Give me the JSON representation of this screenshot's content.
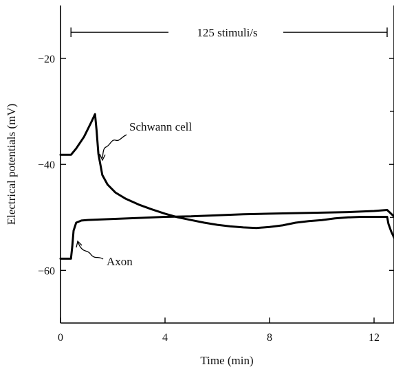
{
  "chart_data": {
    "type": "line",
    "title": "",
    "xlabel": "Time (min)",
    "ylabel": "Electrical potentials (mV)",
    "xlim": [
      0,
      12.8
    ],
    "ylim": [
      -70,
      -10
    ],
    "x_ticks": [
      "0",
      "4",
      "8",
      "12"
    ],
    "y_ticks": [
      "-20",
      "-40",
      "-60"
    ],
    "grid": false,
    "stimulus_bar": {
      "label": "125 stimuli/s",
      "start": 0.4,
      "end": 12.5
    },
    "series": [
      {
        "name": "Schwann cell",
        "color": "#000000",
        "x": [
          0,
          0.4,
          0.6,
          0.9,
          1.2,
          1.32,
          1.38,
          1.45,
          1.6,
          1.8,
          2.1,
          2.5,
          3.0,
          3.5,
          4.0,
          4.5,
          5.0,
          5.5,
          6.0,
          6.5,
          7.0,
          7.5,
          8.0,
          8.5,
          9.0,
          9.5,
          10.0,
          10.5,
          11.0,
          11.5,
          12.0,
          12.5,
          12.55,
          12.65,
          12.8
        ],
        "values": [
          -38.2,
          -38.2,
          -37.0,
          -34.8,
          -31.8,
          -30.5,
          -33.5,
          -38.0,
          -42.0,
          -43.8,
          -45.3,
          -46.5,
          -47.6,
          -48.5,
          -49.3,
          -50.0,
          -50.5,
          -51.0,
          -51.4,
          -51.7,
          -51.9,
          -52.0,
          -51.8,
          -51.5,
          -51.0,
          -50.7,
          -50.5,
          -50.2,
          -50.0,
          -49.9,
          -49.9,
          -49.9,
          -51.2,
          -52.6,
          -54.2
        ]
      },
      {
        "name": "Axon",
        "color": "#000000",
        "x": [
          0,
          0.4,
          0.45,
          0.5,
          0.6,
          0.8,
          1.0,
          1.5,
          2.0,
          3.0,
          4.0,
          5.0,
          6.0,
          7.0,
          8.0,
          9.0,
          10.0,
          11.0,
          12.0,
          12.5,
          12.8
        ],
        "values": [
          -57.8,
          -57.8,
          -55.5,
          -52.5,
          -51.0,
          -50.6,
          -50.5,
          -50.4,
          -50.3,
          -50.1,
          -49.9,
          -49.8,
          -49.6,
          -49.4,
          -49.3,
          -49.2,
          -49.1,
          -49.0,
          -48.8,
          -48.6,
          -50.0
        ]
      }
    ],
    "annotations": [
      {
        "text": "Schwann cell",
        "points_to": "Schwann cell"
      },
      {
        "text": "Axon",
        "points_to": "Axon"
      }
    ]
  }
}
